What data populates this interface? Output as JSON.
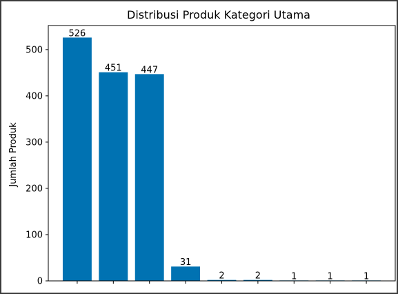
{
  "chart_data": {
    "type": "bar",
    "title": "Distribusi Produk Kategori Utama",
    "xlabel": "",
    "ylabel": "Jumlah Produk",
    "categories": [
      "",
      "",
      "",
      "",
      "",
      "",
      "",
      "",
      ""
    ],
    "values": [
      526,
      451,
      447,
      31,
      2,
      2,
      1,
      1,
      1
    ],
    "data_labels": [
      "526",
      "451",
      "447",
      "31",
      "2",
      "2",
      "1",
      "1",
      "1"
    ],
    "ylim": [
      0,
      552
    ],
    "yticks": [
      0,
      100,
      200,
      300,
      400,
      500
    ],
    "bar_color": "#0072b2",
    "grid": false,
    "legend": "none"
  }
}
